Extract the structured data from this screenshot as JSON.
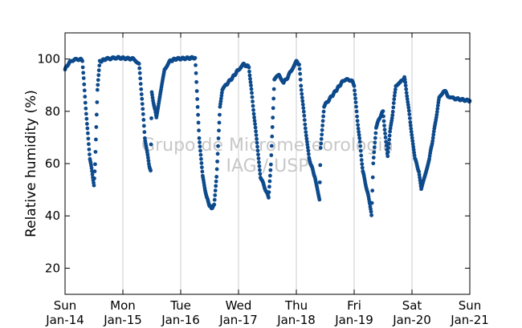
{
  "chart_data": {
    "type": "scatter",
    "title": "",
    "xlabel": "",
    "ylabel": "Relative humidity (%)",
    "ylim": [
      10,
      110
    ],
    "y_ticks": [
      20,
      40,
      60,
      80,
      100
    ],
    "x_ticks": [
      {
        "line1": "Sun",
        "line2": "Jan-14"
      },
      {
        "line1": "Mon",
        "line2": "Jan-15"
      },
      {
        "line1": "Tue",
        "line2": "Jan-16"
      },
      {
        "line1": "Wed",
        "line2": "Jan-17"
      },
      {
        "line1": "Thu",
        "line2": "Jan-18"
      },
      {
        "line1": "Fri",
        "line2": "Jan-19"
      },
      {
        "line1": "Sat",
        "line2": "Jan-20"
      },
      {
        "line1": "Sun",
        "line2": "Jan-21"
      }
    ],
    "xlim_days": [
      0,
      7
    ],
    "grid": "vertical",
    "marker_color": "#0d4a8c",
    "watermark": [
      "Grupo de Micrometeorologia",
      "IAG / USP"
    ],
    "series": [
      {
        "anchors": [
          [
            0.0,
            96
          ],
          [
            0.05,
            98
          ],
          [
            0.12,
            99.5
          ],
          [
            0.25,
            100
          ],
          [
            0.3,
            99.5
          ],
          [
            0.33,
            90
          ],
          [
            0.38,
            75
          ],
          [
            0.43,
            62
          ],
          [
            0.48,
            55
          ],
          [
            0.5,
            52
          ],
          [
            0.52,
            60
          ],
          [
            0.56,
            88
          ],
          [
            0.6,
            99
          ],
          [
            0.7,
            100
          ],
          [
            0.9,
            100.5
          ],
          [
            1.2,
            100
          ],
          [
            1.28,
            98
          ],
          [
            1.33,
            85
          ],
          [
            1.38,
            70
          ],
          [
            1.45,
            60
          ],
          [
            1.48,
            57
          ],
          [
            1.5,
            87
          ],
          [
            1.55,
            81
          ],
          [
            1.58,
            78
          ],
          [
            1.66,
            88
          ],
          [
            1.72,
            96
          ],
          [
            1.8,
            99
          ],
          [
            1.9,
            100
          ],
          [
            2.25,
            100.5
          ],
          [
            2.28,
            88
          ],
          [
            2.32,
            70
          ],
          [
            2.38,
            55
          ],
          [
            2.45,
            47
          ],
          [
            2.5,
            44
          ],
          [
            2.53,
            43
          ],
          [
            2.58,
            44
          ],
          [
            2.62,
            55
          ],
          [
            2.68,
            82
          ],
          [
            2.72,
            88
          ],
          [
            2.78,
            90
          ],
          [
            2.9,
            93
          ],
          [
            3.0,
            96
          ],
          [
            3.08,
            98
          ],
          [
            3.18,
            97
          ],
          [
            3.3,
            72
          ],
          [
            3.38,
            55
          ],
          [
            3.45,
            51
          ],
          [
            3.52,
            47
          ],
          [
            3.56,
            60
          ],
          [
            3.62,
            92
          ],
          [
            3.7,
            94
          ],
          [
            3.78,
            91
          ],
          [
            3.85,
            93
          ],
          [
            3.92,
            96
          ],
          [
            4.0,
            99
          ],
          [
            4.05,
            98
          ],
          [
            4.08,
            90
          ],
          [
            4.15,
            75
          ],
          [
            4.22,
            62
          ],
          [
            4.32,
            55
          ],
          [
            4.38,
            48
          ],
          [
            4.4,
            46
          ],
          [
            4.42,
            66
          ],
          [
            4.48,
            82
          ],
          [
            4.55,
            84
          ],
          [
            4.62,
            86
          ],
          [
            4.72,
            89
          ],
          [
            4.82,
            92
          ],
          [
            4.95,
            92
          ],
          [
            5.0,
            90
          ],
          [
            5.05,
            78
          ],
          [
            5.1,
            68
          ],
          [
            5.15,
            57
          ],
          [
            5.22,
            50
          ],
          [
            5.27,
            45
          ],
          [
            5.3,
            40
          ],
          [
            5.33,
            60
          ],
          [
            5.38,
            74
          ],
          [
            5.45,
            78
          ],
          [
            5.5,
            80
          ],
          [
            5.55,
            68
          ],
          [
            5.58,
            63
          ],
          [
            5.62,
            72
          ],
          [
            5.67,
            80
          ],
          [
            5.72,
            90
          ],
          [
            5.8,
            91
          ],
          [
            5.87,
            93
          ],
          [
            5.92,
            85
          ],
          [
            5.97,
            76
          ],
          [
            6.05,
            62
          ],
          [
            6.12,
            57
          ],
          [
            6.16,
            50
          ],
          [
            6.22,
            55
          ],
          [
            6.3,
            62
          ],
          [
            6.35,
            68
          ],
          [
            6.4,
            75
          ],
          [
            6.47,
            85
          ],
          [
            6.55,
            88
          ],
          [
            6.6,
            87
          ],
          [
            6.62,
            86
          ],
          [
            6.7,
            85
          ],
          [
            7.0,
            84
          ]
        ]
      }
    ]
  }
}
